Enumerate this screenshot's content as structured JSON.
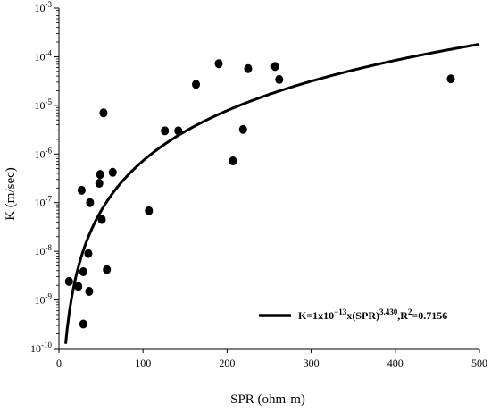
{
  "chart_data": {
    "type": "scatter",
    "xlabel": "SPR (ohm-m)",
    "ylabel": "K (m/sec)",
    "xlim": [
      0,
      500
    ],
    "ylim": [
      1e-10,
      0.001
    ],
    "y_scale": "log",
    "x_ticks": [
      0,
      100,
      200,
      300,
      400,
      500
    ],
    "y_ticks": [
      {
        "value": 1e-10,
        "base": "10",
        "exp": "-10"
      },
      {
        "value": 1e-09,
        "base": "10",
        "exp": "-9"
      },
      {
        "value": 1e-08,
        "base": "10",
        "exp": "-8"
      },
      {
        "value": 1e-07,
        "base": "10",
        "exp": "-7"
      },
      {
        "value": 1e-06,
        "base": "10",
        "exp": "-6"
      },
      {
        "value": 1e-05,
        "base": "10",
        "exp": "-5"
      },
      {
        "value": 0.0001,
        "base": "10",
        "exp": "-4"
      },
      {
        "value": 0.001,
        "base": "10",
        "exp": "-3"
      }
    ],
    "grid": false,
    "legend_position": "bottom-right",
    "points": [
      {
        "x": 12,
        "y": 2.4e-09
      },
      {
        "x": 23,
        "y": 1.9e-09
      },
      {
        "x": 27,
        "y": 1.8e-07
      },
      {
        "x": 29,
        "y": 3.2e-10
      },
      {
        "x": 29,
        "y": 3.8e-09
      },
      {
        "x": 35,
        "y": 9e-09
      },
      {
        "x": 36,
        "y": 1.5e-09
      },
      {
        "x": 37,
        "y": 1e-07
      },
      {
        "x": 48,
        "y": 2.5e-07
      },
      {
        "x": 49,
        "y": 3.8e-07
      },
      {
        "x": 51,
        "y": 4.5e-08
      },
      {
        "x": 53,
        "y": 7e-06
      },
      {
        "x": 57,
        "y": 4.2e-09
      },
      {
        "x": 64,
        "y": 4.2e-07
      },
      {
        "x": 107,
        "y": 6.8e-08
      },
      {
        "x": 126,
        "y": 3e-06
      },
      {
        "x": 142,
        "y": 3e-06
      },
      {
        "x": 163,
        "y": 2.7e-05
      },
      {
        "x": 190,
        "y": 7.2e-05
      },
      {
        "x": 207,
        "y": 7.2e-07
      },
      {
        "x": 219,
        "y": 3.2e-06
      },
      {
        "x": 225,
        "y": 5.7e-05
      },
      {
        "x": 257,
        "y": 6.3e-05
      },
      {
        "x": 262,
        "y": 3.4e-05
      },
      {
        "x": 466,
        "y": 3.5e-05
      }
    ],
    "fit": {
      "coefficient": 1e-13,
      "exponent": 3.43,
      "r2": 0.7156
    },
    "legend": {
      "prefix": "K=1x10",
      "coef_exp": "−13",
      "middle": "x(SPR)",
      "power": "3.430",
      "suffix": ",R",
      "r2_exp": "2",
      "r2_value": "=0.7156"
    },
    "colors": {
      "points": "#000000",
      "fit_line": "#000000",
      "axes": "#000000"
    }
  }
}
